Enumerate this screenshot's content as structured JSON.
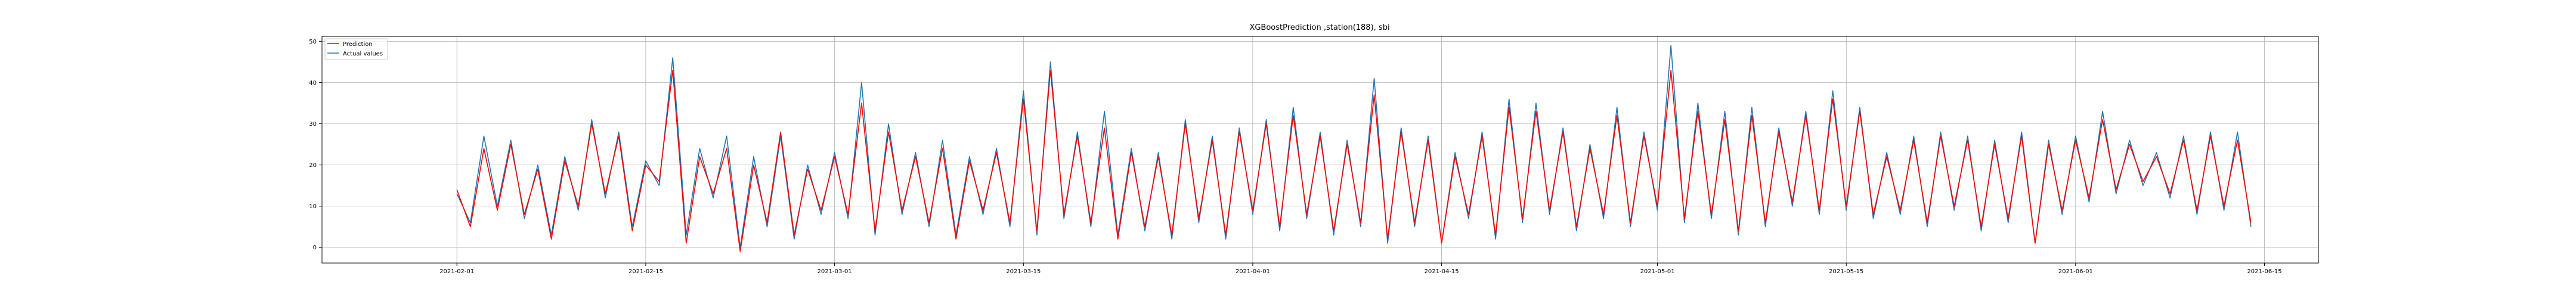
{
  "chart_data": {
    "type": "line",
    "title": "XGBoostPrediction ,station(188), sbi",
    "xlabel": "",
    "ylabel": "",
    "x_axis": {
      "type": "date",
      "range": [
        "2021-01-22",
        "2021-06-19"
      ],
      "ticks": [
        "2021-02-01",
        "2021-02-15",
        "2021-03-01",
        "2021-03-15",
        "2021-04-01",
        "2021-04-15",
        "2021-05-01",
        "2021-05-15",
        "2021-06-01",
        "2021-06-15"
      ]
    },
    "y_axis": {
      "range": [
        -3.8,
        51.2
      ],
      "ticks": [
        0,
        10,
        20,
        30,
        40,
        50
      ]
    },
    "grid": true,
    "legend_position": "upper left",
    "colors": {
      "Prediction": "#ff0000",
      "Actual values": "#1f77b4"
    },
    "series": [
      {
        "name": "Prediction",
        "points": [
          [
            "2021-02-01",
            14
          ],
          [
            "2021-02-02",
            5
          ],
          [
            "2021-02-03",
            24
          ],
          [
            "2021-02-04",
            9
          ],
          [
            "2021-02-05",
            25
          ],
          [
            "2021-02-06",
            8
          ],
          [
            "2021-02-07",
            19
          ],
          [
            "2021-02-08",
            2
          ],
          [
            "2021-02-09",
            21
          ],
          [
            "2021-02-10",
            10
          ],
          [
            "2021-02-11",
            30
          ],
          [
            "2021-02-12",
            13
          ],
          [
            "2021-02-13",
            27
          ],
          [
            "2021-02-14",
            4
          ],
          [
            "2021-02-15",
            20
          ],
          [
            "2021-02-16",
            16
          ],
          [
            "2021-02-17",
            43
          ],
          [
            "2021-02-18",
            1
          ],
          [
            "2021-02-19",
            22
          ],
          [
            "2021-02-20",
            13
          ],
          [
            "2021-02-21",
            24
          ],
          [
            "2021-02-22",
            -1
          ],
          [
            "2021-02-23",
            20
          ],
          [
            "2021-02-24",
            6
          ],
          [
            "2021-02-25",
            28
          ],
          [
            "2021-02-26",
            3
          ],
          [
            "2021-02-27",
            19
          ],
          [
            "2021-02-28",
            9
          ],
          [
            "2021-03-01",
            22
          ],
          [
            "2021-03-02",
            8
          ],
          [
            "2021-03-03",
            35
          ],
          [
            "2021-03-04",
            4
          ],
          [
            "2021-03-05",
            28
          ],
          [
            "2021-03-06",
            9
          ],
          [
            "2021-03-07",
            22
          ],
          [
            "2021-03-08",
            6
          ],
          [
            "2021-03-09",
            24
          ],
          [
            "2021-03-10",
            2
          ],
          [
            "2021-03-11",
            21
          ],
          [
            "2021-03-12",
            9
          ],
          [
            "2021-03-13",
            23
          ],
          [
            "2021-03-14",
            6
          ],
          [
            "2021-03-15",
            36
          ],
          [
            "2021-03-16",
            4
          ],
          [
            "2021-03-17",
            43
          ],
          [
            "2021-03-18",
            8
          ],
          [
            "2021-03-19",
            27
          ],
          [
            "2021-03-20",
            6
          ],
          [
            "2021-03-21",
            29
          ],
          [
            "2021-03-22",
            2
          ],
          [
            "2021-03-23",
            23
          ],
          [
            "2021-03-24",
            5
          ],
          [
            "2021-03-25",
            22
          ],
          [
            "2021-03-26",
            3
          ],
          [
            "2021-03-27",
            30
          ],
          [
            "2021-03-28",
            7
          ],
          [
            "2021-03-29",
            26
          ],
          [
            "2021-03-30",
            3
          ],
          [
            "2021-03-31",
            28
          ],
          [
            "2021-04-01",
            9
          ],
          [
            "2021-04-02",
            30
          ],
          [
            "2021-04-03",
            5
          ],
          [
            "2021-04-04",
            32
          ],
          [
            "2021-04-05",
            8
          ],
          [
            "2021-04-06",
            27
          ],
          [
            "2021-04-07",
            4
          ],
          [
            "2021-04-08",
            25
          ],
          [
            "2021-04-09",
            6
          ],
          [
            "2021-04-10",
            37
          ],
          [
            "2021-04-11",
            2
          ],
          [
            "2021-04-12",
            28
          ],
          [
            "2021-04-13",
            6
          ],
          [
            "2021-04-14",
            26
          ],
          [
            "2021-04-15",
            1
          ],
          [
            "2021-04-16",
            22
          ],
          [
            "2021-04-17",
            8
          ],
          [
            "2021-04-18",
            27
          ],
          [
            "2021-04-19",
            3
          ],
          [
            "2021-04-20",
            34
          ],
          [
            "2021-04-21",
            7
          ],
          [
            "2021-04-22",
            33
          ],
          [
            "2021-04-23",
            9
          ],
          [
            "2021-04-24",
            28
          ],
          [
            "2021-04-25",
            5
          ],
          [
            "2021-04-26",
            24
          ],
          [
            "2021-04-27",
            8
          ],
          [
            "2021-04-28",
            32
          ],
          [
            "2021-04-29",
            6
          ],
          [
            "2021-04-30",
            27
          ],
          [
            "2021-05-01",
            10
          ],
          [
            "2021-05-02",
            43
          ],
          [
            "2021-05-03",
            7
          ],
          [
            "2021-05-04",
            33
          ],
          [
            "2021-05-05",
            8
          ],
          [
            "2021-05-06",
            31
          ],
          [
            "2021-05-07",
            4
          ],
          [
            "2021-05-08",
            32
          ],
          [
            "2021-05-09",
            6
          ],
          [
            "2021-05-10",
            28
          ],
          [
            "2021-05-11",
            11
          ],
          [
            "2021-05-12",
            32
          ],
          [
            "2021-05-13",
            9
          ],
          [
            "2021-05-14",
            36
          ],
          [
            "2021-05-15",
            10
          ],
          [
            "2021-05-16",
            33
          ],
          [
            "2021-05-17",
            8
          ],
          [
            "2021-05-18",
            22
          ],
          [
            "2021-05-19",
            9
          ],
          [
            "2021-05-20",
            26
          ],
          [
            "2021-05-21",
            6
          ],
          [
            "2021-05-22",
            27
          ],
          [
            "2021-05-23",
            10
          ],
          [
            "2021-05-24",
            26
          ],
          [
            "2021-05-25",
            5
          ],
          [
            "2021-05-26",
            25
          ],
          [
            "2021-05-27",
            7
          ],
          [
            "2021-05-28",
            27
          ],
          [
            "2021-05-29",
            1
          ],
          [
            "2021-05-30",
            25
          ],
          [
            "2021-05-31",
            9
          ],
          [
            "2021-06-01",
            26
          ],
          [
            "2021-06-02",
            12
          ],
          [
            "2021-06-03",
            31
          ],
          [
            "2021-06-04",
            14
          ],
          [
            "2021-06-05",
            25
          ],
          [
            "2021-06-06",
            16
          ],
          [
            "2021-06-07",
            22
          ],
          [
            "2021-06-08",
            13
          ],
          [
            "2021-06-09",
            26
          ],
          [
            "2021-06-10",
            9
          ],
          [
            "2021-06-11",
            27
          ],
          [
            "2021-06-12",
            10
          ],
          [
            "2021-06-13",
            26
          ],
          [
            "2021-06-14",
            6
          ]
        ]
      },
      {
        "name": "Actual values",
        "points": [
          [
            "2021-02-01",
            13
          ],
          [
            "2021-02-02",
            6
          ],
          [
            "2021-02-03",
            27
          ],
          [
            "2021-02-04",
            10
          ],
          [
            "2021-02-05",
            26
          ],
          [
            "2021-02-06",
            7
          ],
          [
            "2021-02-07",
            20
          ],
          [
            "2021-02-08",
            3
          ],
          [
            "2021-02-09",
            22
          ],
          [
            "2021-02-10",
            9
          ],
          [
            "2021-02-11",
            31
          ],
          [
            "2021-02-12",
            12
          ],
          [
            "2021-02-13",
            28
          ],
          [
            "2021-02-14",
            5
          ],
          [
            "2021-02-15",
            21
          ],
          [
            "2021-02-16",
            15
          ],
          [
            "2021-02-17",
            46
          ],
          [
            "2021-02-18",
            3
          ],
          [
            "2021-02-19",
            24
          ],
          [
            "2021-02-20",
            12
          ],
          [
            "2021-02-21",
            27
          ],
          [
            "2021-02-22",
            0
          ],
          [
            "2021-02-23",
            22
          ],
          [
            "2021-02-24",
            5
          ],
          [
            "2021-02-25",
            27
          ],
          [
            "2021-02-26",
            2
          ],
          [
            "2021-02-27",
            20
          ],
          [
            "2021-02-28",
            8
          ],
          [
            "2021-03-01",
            23
          ],
          [
            "2021-03-02",
            7
          ],
          [
            "2021-03-03",
            40
          ],
          [
            "2021-03-04",
            3
          ],
          [
            "2021-03-05",
            30
          ],
          [
            "2021-03-06",
            8
          ],
          [
            "2021-03-07",
            23
          ],
          [
            "2021-03-08",
            5
          ],
          [
            "2021-03-09",
            26
          ],
          [
            "2021-03-10",
            3
          ],
          [
            "2021-03-11",
            22
          ],
          [
            "2021-03-12",
            8
          ],
          [
            "2021-03-13",
            24
          ],
          [
            "2021-03-14",
            5
          ],
          [
            "2021-03-15",
            38
          ],
          [
            "2021-03-16",
            3
          ],
          [
            "2021-03-17",
            45
          ],
          [
            "2021-03-18",
            7
          ],
          [
            "2021-03-19",
            28
          ],
          [
            "2021-03-20",
            5
          ],
          [
            "2021-03-21",
            33
          ],
          [
            "2021-03-22",
            3
          ],
          [
            "2021-03-23",
            24
          ],
          [
            "2021-03-24",
            4
          ],
          [
            "2021-03-25",
            23
          ],
          [
            "2021-03-26",
            2
          ],
          [
            "2021-03-27",
            31
          ],
          [
            "2021-03-28",
            6
          ],
          [
            "2021-03-29",
            27
          ],
          [
            "2021-03-30",
            2
          ],
          [
            "2021-03-31",
            29
          ],
          [
            "2021-04-01",
            8
          ],
          [
            "2021-04-02",
            31
          ],
          [
            "2021-04-03",
            4
          ],
          [
            "2021-04-04",
            34
          ],
          [
            "2021-04-05",
            7
          ],
          [
            "2021-04-06",
            28
          ],
          [
            "2021-04-07",
            3
          ],
          [
            "2021-04-08",
            26
          ],
          [
            "2021-04-09",
            5
          ],
          [
            "2021-04-10",
            41
          ],
          [
            "2021-04-11",
            1
          ],
          [
            "2021-04-12",
            29
          ],
          [
            "2021-04-13",
            5
          ],
          [
            "2021-04-14",
            27
          ],
          [
            "2021-04-15",
            1
          ],
          [
            "2021-04-16",
            23
          ],
          [
            "2021-04-17",
            7
          ],
          [
            "2021-04-18",
            28
          ],
          [
            "2021-04-19",
            2
          ],
          [
            "2021-04-20",
            36
          ],
          [
            "2021-04-21",
            6
          ],
          [
            "2021-04-22",
            35
          ],
          [
            "2021-04-23",
            8
          ],
          [
            "2021-04-24",
            29
          ],
          [
            "2021-04-25",
            4
          ],
          [
            "2021-04-26",
            25
          ],
          [
            "2021-04-27",
            7
          ],
          [
            "2021-04-28",
            34
          ],
          [
            "2021-04-29",
            5
          ],
          [
            "2021-04-30",
            28
          ],
          [
            "2021-05-01",
            9
          ],
          [
            "2021-05-02",
            49
          ],
          [
            "2021-05-03",
            6
          ],
          [
            "2021-05-04",
            35
          ],
          [
            "2021-05-05",
            7
          ],
          [
            "2021-05-06",
            33
          ],
          [
            "2021-05-07",
            3
          ],
          [
            "2021-05-08",
            34
          ],
          [
            "2021-05-09",
            5
          ],
          [
            "2021-05-10",
            29
          ],
          [
            "2021-05-11",
            10
          ],
          [
            "2021-05-12",
            33
          ],
          [
            "2021-05-13",
            8
          ],
          [
            "2021-05-14",
            38
          ],
          [
            "2021-05-15",
            9
          ],
          [
            "2021-05-16",
            34
          ],
          [
            "2021-05-17",
            7
          ],
          [
            "2021-05-18",
            23
          ],
          [
            "2021-05-19",
            8
          ],
          [
            "2021-05-20",
            27
          ],
          [
            "2021-05-21",
            5
          ],
          [
            "2021-05-22",
            28
          ],
          [
            "2021-05-23",
            9
          ],
          [
            "2021-05-24",
            27
          ],
          [
            "2021-05-25",
            4
          ],
          [
            "2021-05-26",
            26
          ],
          [
            "2021-05-27",
            6
          ],
          [
            "2021-05-28",
            28
          ],
          [
            "2021-05-29",
            1
          ],
          [
            "2021-05-30",
            26
          ],
          [
            "2021-05-31",
            8
          ],
          [
            "2021-06-01",
            27
          ],
          [
            "2021-06-02",
            11
          ],
          [
            "2021-06-03",
            33
          ],
          [
            "2021-06-04",
            13
          ],
          [
            "2021-06-05",
            26
          ],
          [
            "2021-06-06",
            15
          ],
          [
            "2021-06-07",
            23
          ],
          [
            "2021-06-08",
            12
          ],
          [
            "2021-06-09",
            27
          ],
          [
            "2021-06-10",
            8
          ],
          [
            "2021-06-11",
            28
          ],
          [
            "2021-06-12",
            9
          ],
          [
            "2021-06-13",
            28
          ],
          [
            "2021-06-14",
            5
          ]
        ]
      }
    ]
  }
}
